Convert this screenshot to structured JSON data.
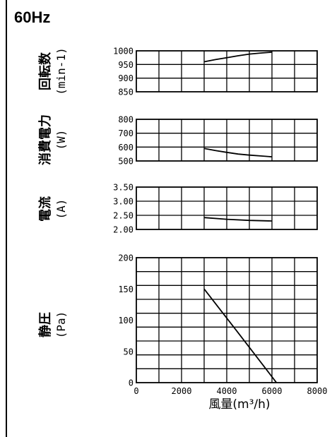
{
  "header": {
    "frequency": "60Hz"
  },
  "chart_data": [
    {
      "type": "line",
      "ylabel": "回転数",
      "yunit": "(min-1)",
      "ylim": [
        850,
        1000
      ],
      "yticks": [
        "1000",
        "950",
        "900",
        "850"
      ],
      "xlim": [
        0,
        8000
      ],
      "grid": true,
      "series": [
        {
          "x": [
            3000,
            3500,
            4000,
            4500,
            5000,
            5500,
            6000
          ],
          "values": [
            960,
            968,
            975,
            982,
            988,
            992,
            995
          ]
        }
      ]
    },
    {
      "type": "line",
      "ylabel": "消費電力",
      "yunit": "(W)",
      "ylim": [
        500,
        800
      ],
      "yticks": [
        "800",
        "700",
        "600",
        "500"
      ],
      "xlim": [
        0,
        8000
      ],
      "grid": true,
      "series": [
        {
          "x": [
            3000,
            3500,
            4000,
            4500,
            5000,
            5500,
            6000
          ],
          "values": [
            590,
            575,
            562,
            550,
            542,
            536,
            530
          ]
        }
      ]
    },
    {
      "type": "line",
      "ylabel": "電流",
      "yunit": "(A)",
      "ylim": [
        2.0,
        3.5
      ],
      "yticks": [
        "3.50",
        "3.00",
        "2.50",
        "2.00"
      ],
      "xlim": [
        0,
        8000
      ],
      "grid": true,
      "series": [
        {
          "x": [
            3000,
            4000,
            5000,
            6000
          ],
          "values": [
            2.42,
            2.36,
            2.32,
            2.3
          ]
        }
      ]
    },
    {
      "type": "line",
      "ylabel": "静圧",
      "yunit": "(Pa)",
      "ylim": [
        0,
        200
      ],
      "yticks": [
        "200",
        "150",
        "100",
        "50",
        "0"
      ],
      "xlim": [
        0,
        8000
      ],
      "xticks": [
        "0",
        "2000",
        "4000",
        "6000",
        "8000"
      ],
      "xlabel": "風量(m³/h)",
      "grid": true,
      "series": [
        {
          "x": [
            3000,
            4500,
            6200
          ],
          "values": [
            150,
            80,
            0
          ]
        }
      ]
    }
  ]
}
